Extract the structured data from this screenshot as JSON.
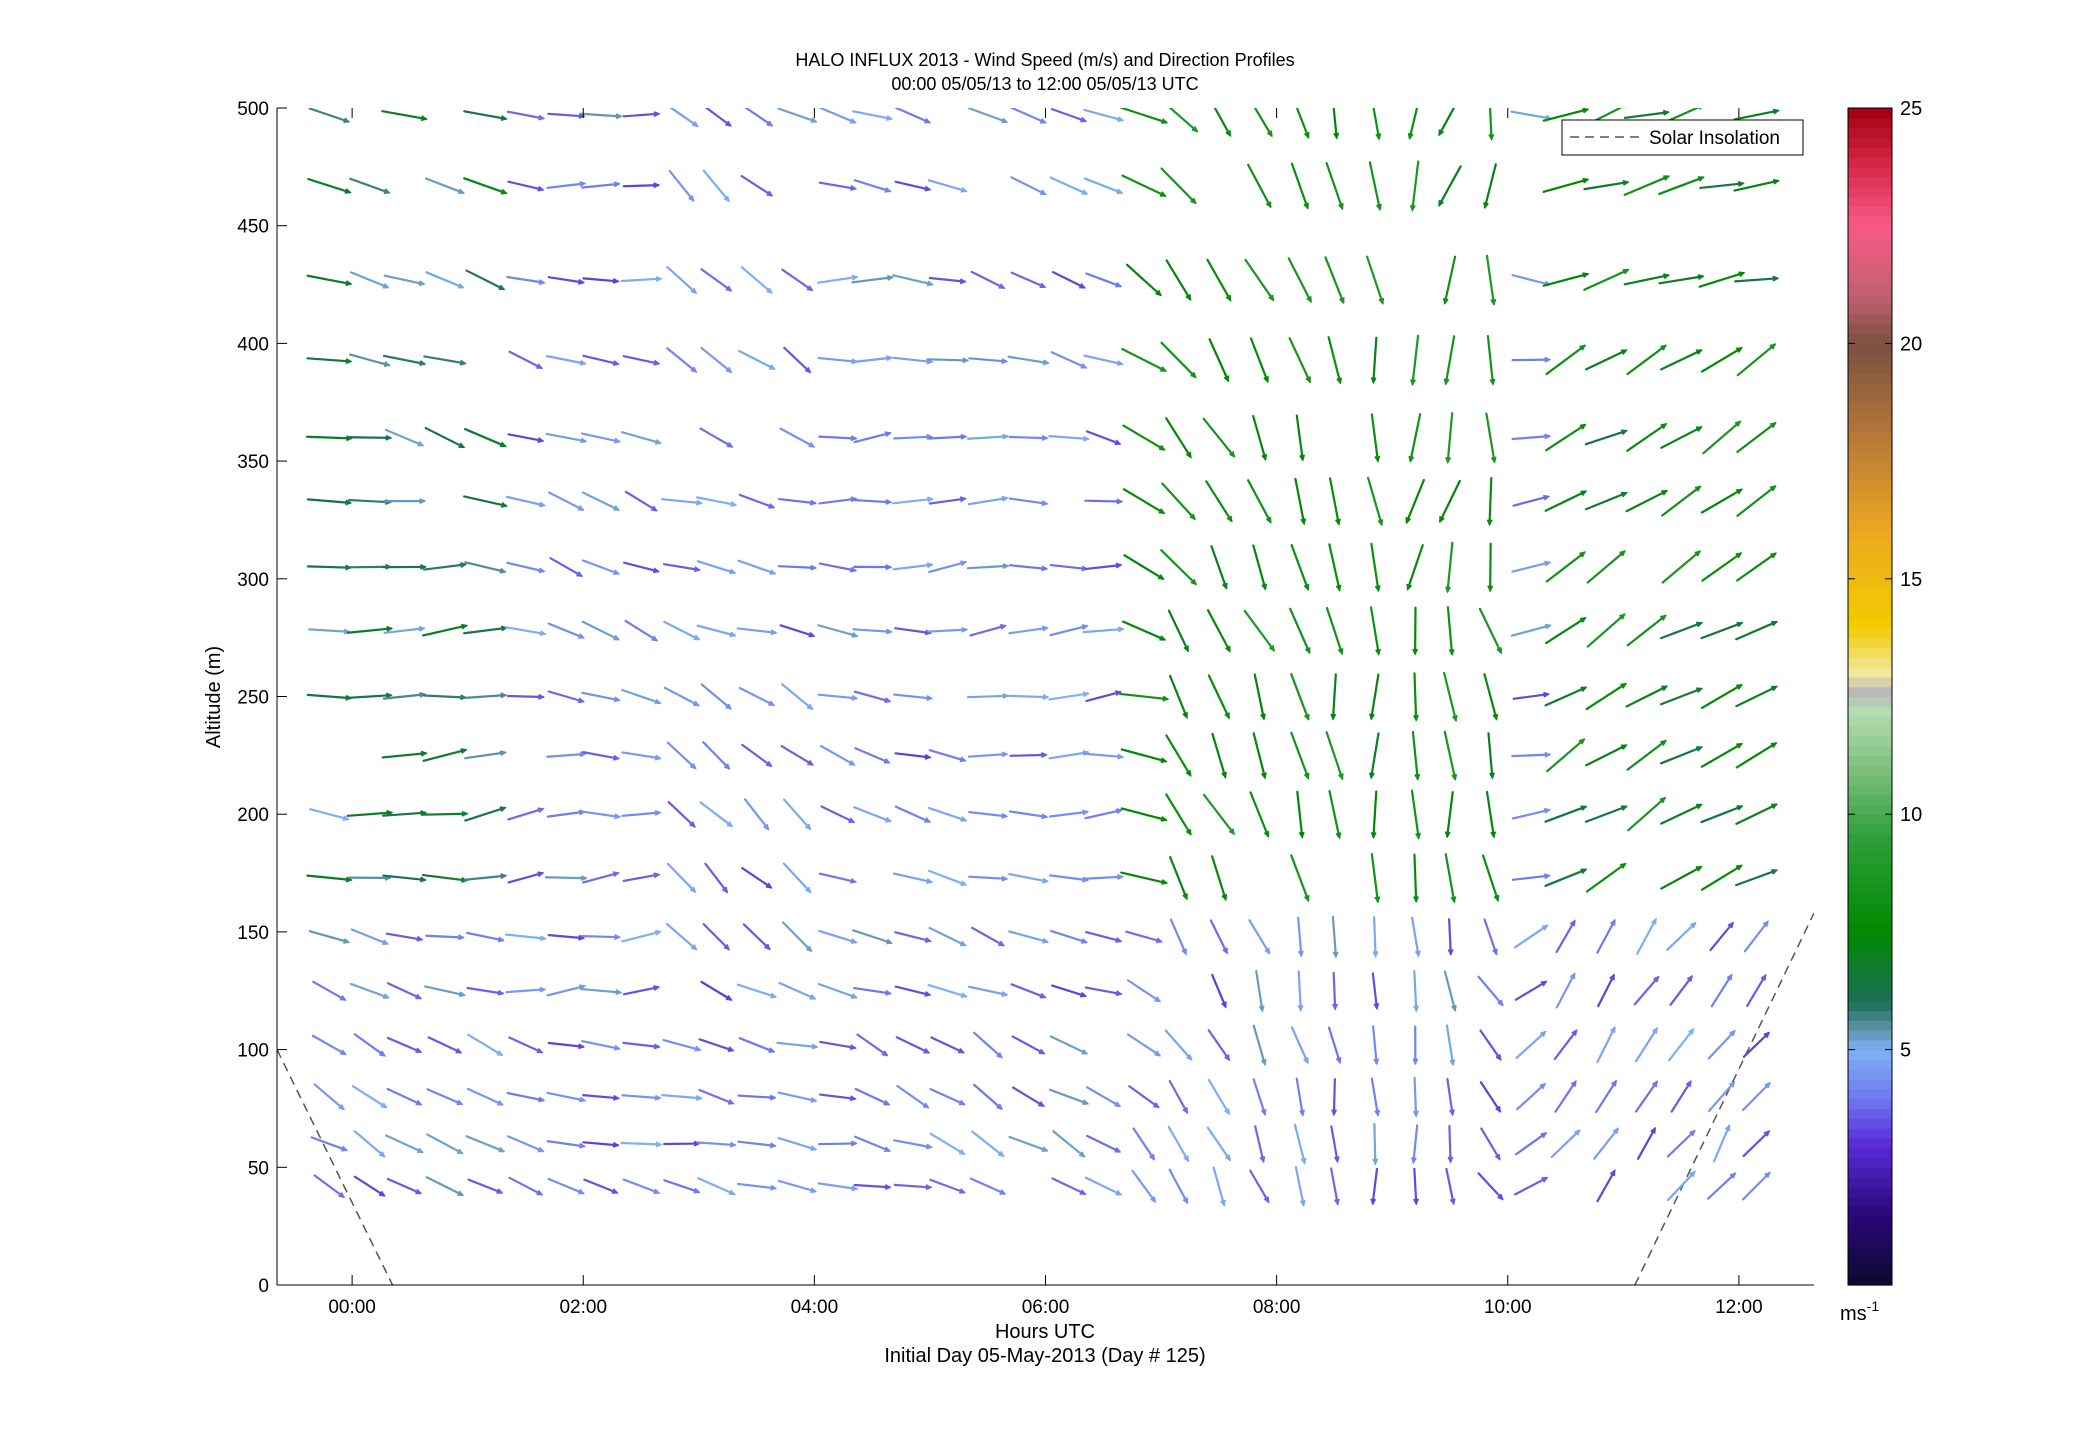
{
  "chart_data": {
    "type": "vector-field",
    "title": "HALO INFLUX 2013 - Wind Speed (m/s) and Direction Profiles",
    "subtitle": "00:00 05/05/13 to 12:00 05/05/13  UTC",
    "xlabel": "Hours UTC",
    "xlabel2": "Initial Day 05-May-2013 (Day # 125)",
    "ylabel": "Altitude (m)",
    "xlim": [
      -0.65,
      12.65
    ],
    "ylim": [
      0,
      500
    ],
    "x_ticks": [
      {
        "value": 0,
        "label": "00:00"
      },
      {
        "value": 2,
        "label": "02:00"
      },
      {
        "value": 4,
        "label": "04:00"
      },
      {
        "value": 6,
        "label": "06:00"
      },
      {
        "value": 8,
        "label": "08:00"
      },
      {
        "value": 10,
        "label": "10:00"
      },
      {
        "value": 12,
        "label": "12:00"
      }
    ],
    "y_ticks": [
      {
        "value": 0,
        "label": "0"
      },
      {
        "value": 50,
        "label": "50"
      },
      {
        "value": 100,
        "label": "100"
      },
      {
        "value": 150,
        "label": "150"
      },
      {
        "value": 200,
        "label": "200"
      },
      {
        "value": 250,
        "label": "250"
      },
      {
        "value": 300,
        "label": "300"
      },
      {
        "value": 350,
        "label": "350"
      },
      {
        "value": 400,
        "label": "400"
      },
      {
        "value": 450,
        "label": "450"
      },
      {
        "value": 500,
        "label": "500"
      }
    ],
    "grid": false,
    "legend": {
      "position": "top-right",
      "entries": [
        "Solar Insolation"
      ]
    },
    "colorbar": {
      "range": [
        0,
        25
      ],
      "unit": "ms",
      "unit_exponent": "-1",
      "ticks": [
        {
          "value": 5,
          "label": "5"
        },
        {
          "value": 10,
          "label": "10"
        },
        {
          "value": 15,
          "label": "15"
        },
        {
          "value": 20,
          "label": "20"
        },
        {
          "value": 25,
          "label": "25"
        }
      ],
      "stops": [
        {
          "v": 0,
          "color": "#0a0a30"
        },
        {
          "v": 1.5,
          "color": "#2a0878"
        },
        {
          "v": 3.0,
          "color": "#5a2bd8"
        },
        {
          "v": 4.0,
          "color": "#6f7cf0"
        },
        {
          "v": 5.0,
          "color": "#7fb0f4"
        },
        {
          "v": 5.5,
          "color": "#5a8fa0"
        },
        {
          "v": 6.0,
          "color": "#1c6e58"
        },
        {
          "v": 7.5,
          "color": "#008a00"
        },
        {
          "v": 9.5,
          "color": "#2e9e3c"
        },
        {
          "v": 11.0,
          "color": "#80c080"
        },
        {
          "v": 12.2,
          "color": "#b5ddb0"
        },
        {
          "v": 12.6,
          "color": "#b8b8b8"
        },
        {
          "v": 13.0,
          "color": "#f2e8a0"
        },
        {
          "v": 14.0,
          "color": "#f2cc00"
        },
        {
          "v": 16.0,
          "color": "#eca820"
        },
        {
          "v": 18.0,
          "color": "#b87838"
        },
        {
          "v": 20.0,
          "color": "#7a5040"
        },
        {
          "v": 21.0,
          "color": "#c06070"
        },
        {
          "v": 22.5,
          "color": "#f85a88"
        },
        {
          "v": 24.0,
          "color": "#d0203c"
        },
        {
          "v": 25.0,
          "color": "#a00010"
        }
      ]
    },
    "solar_insolation": [
      {
        "segment": "dawn-left",
        "points": [
          [
            -0.65,
            100
          ],
          [
            0.35,
            0
          ]
        ]
      },
      {
        "segment": "dusk-right",
        "points": [
          [
            11.1,
            0
          ],
          [
            12.65,
            158
          ]
        ]
      }
    ],
    "wind_vectors": {
      "times_hours": [
        -0.2,
        0.15,
        0.45,
        0.8,
        1.15,
        1.5,
        1.85,
        2.15,
        2.5,
        2.85,
        3.15,
        3.5,
        3.85,
        4.2,
        4.5,
        4.85,
        5.15,
        5.5,
        5.85,
        6.2,
        6.5,
        6.85,
        7.15,
        7.5,
        7.85,
        8.2,
        8.5,
        8.85,
        9.2,
        9.5,
        9.85,
        10.2,
        10.5,
        10.85,
        11.2,
        11.5,
        11.85,
        12.15
      ],
      "altitudes_m": [
        42,
        60,
        80,
        102,
        125,
        148,
        173,
        200,
        225,
        250,
        278,
        305,
        333,
        360,
        393,
        427,
        467,
        497
      ],
      "direction_regimes": [
        {
          "from_hour": -0.65,
          "to_hour": 7.0,
          "direction": "westerly/northwesterly, flowing east to southeast"
        },
        {
          "from_hour": 7.0,
          "to_hour": 10.0,
          "direction": "northwesterly veering to northerly"
        },
        {
          "from_hour": 10.0,
          "to_hour": 12.65,
          "direction": "southwesterly, flowing northeast"
        }
      ],
      "speed_summary_ms": {
        "typical_range": [
          2,
          9
        ],
        "max_shown": 9
      }
    }
  }
}
